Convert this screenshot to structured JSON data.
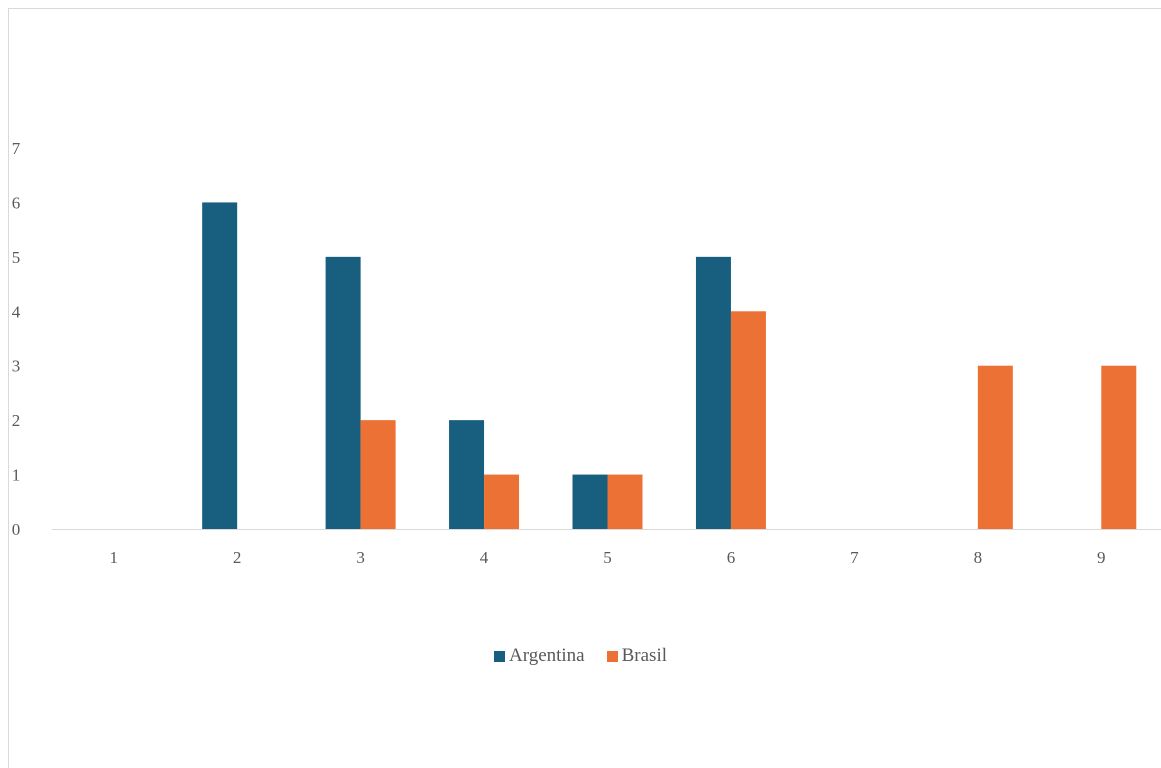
{
  "chart_data": {
    "type": "bar",
    "title": "",
    "xlabel": "",
    "ylabel": "",
    "categories": [
      "1",
      "2",
      "3",
      "4",
      "5",
      "6",
      "7",
      "8",
      "9"
    ],
    "ylim": [
      0,
      7
    ],
    "yticks": [
      "0",
      "1",
      "2",
      "3",
      "4",
      "5",
      "6",
      "7"
    ],
    "grid": false,
    "legend_position": "bottom",
    "series": [
      {
        "name": "Argentina",
        "color": "#175e7f",
        "values": [
          0,
          6,
          5,
          2,
          1,
          5,
          0,
          0,
          0
        ]
      },
      {
        "name": "Brasil",
        "color": "#eb7234",
        "values": [
          0,
          0,
          2,
          1,
          1,
          4,
          0,
          3,
          3
        ]
      }
    ]
  }
}
